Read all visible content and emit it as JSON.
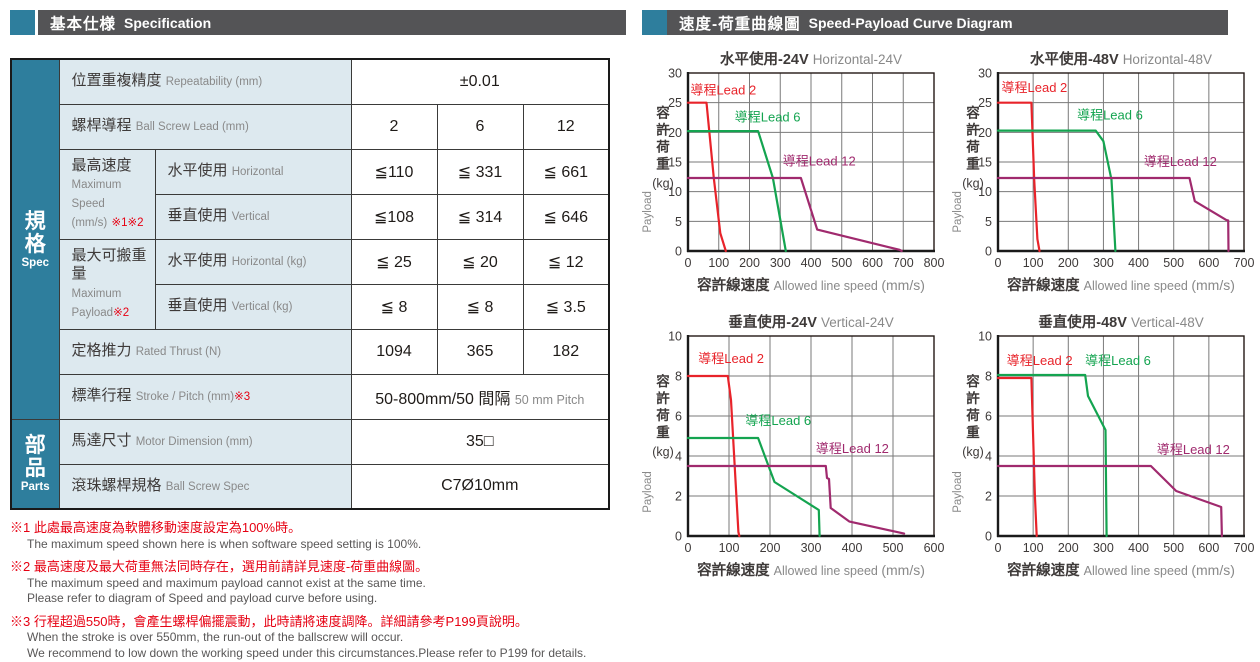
{
  "left_panel": {
    "header": {
      "zh": "基本仕様",
      "en": "Specification"
    },
    "sidebar": {
      "spec": {
        "zh": "規格",
        "en": "Spec"
      },
      "parts": {
        "zh": "部品",
        "en": "Parts"
      }
    },
    "rows": {
      "repeatability": {
        "zh": "位置重複精度",
        "en": "Repeatability (mm)",
        "value": "±0.01"
      },
      "lead": {
        "zh": "螺桿導程",
        "en": "Ball Screw Lead (mm)",
        "values": [
          "2",
          "6",
          "12"
        ]
      },
      "max_speed": {
        "zh": "最高速度",
        "en1": "Maximum Speed",
        "en2": "(mm/s)",
        "note": "※1※2",
        "horizontal": {
          "zh": "水平使用",
          "en": "Horizontal",
          "values": [
            "≦110",
            "≦ 331",
            "≦ 661"
          ]
        },
        "vertical": {
          "zh": "垂直使用",
          "en": "Vertical",
          "values": [
            "≦108",
            "≦ 314",
            "≦ 646"
          ]
        }
      },
      "max_payload": {
        "zh": "最大可搬重量",
        "en": "Maximum Payload",
        "note": "※2",
        "horizontal": {
          "zh": "水平使用",
          "en": "Horizontal (kg)",
          "values": [
            "≦ 25",
            "≦ 20",
            "≦ 12"
          ]
        },
        "vertical": {
          "zh": "垂直使用",
          "en": "Vertical (kg)",
          "values": [
            "≦ 8",
            "≦ 8",
            "≦ 3.5"
          ]
        }
      },
      "rated_thrust": {
        "zh": "定格推力",
        "en": "Rated Thrust (N)",
        "values": [
          "1094",
          "365",
          "182"
        ]
      },
      "stroke": {
        "zh": "標準行程",
        "en": "Stroke / Pitch (mm)",
        "note": "※3",
        "value_main": "50-800mm/50 間隔",
        "value_sub": "50 mm Pitch"
      },
      "motor": {
        "zh": "馬達尺寸",
        "en": "Motor Dimension (mm)",
        "value": "35□"
      },
      "ballscrew": {
        "zh": "滾珠螺桿規格",
        "en": "Ball Screw Spec",
        "value": "C7Ø10mm"
      }
    },
    "footnotes": [
      {
        "zh": "※1 此處最高速度為軟體移動速度設定為100%時。",
        "en": [
          "The maximum speed shown here is when software speed setting is 100%."
        ]
      },
      {
        "zh": "※2 最高速度及最大荷重無法同時存在，選用前請詳見速度-荷重曲線圖。",
        "en": [
          "The maximum speed and maximum payload cannot exist at the same time.",
          "Please refer to diagram of Speed and payload curve before using."
        ]
      },
      {
        "zh": "※3 行程超過550時，會產生螺桿偏擺震動，此時請將速度調降。詳細請參考P199頁說明。",
        "en": [
          "When the stroke is over 550mm, the run-out of the ballscrew will occur.",
          "We recommend to low down the working speed under this circumstances.Please refer to P199 for details."
        ]
      }
    ]
  },
  "right_panel": {
    "header": {
      "zh": "速度-荷重曲線圖",
      "en": "Speed-Payload Curve Diagram"
    }
  },
  "colors": {
    "red": "#e8232a",
    "green": "#14a450",
    "purple": "#a02a6e",
    "teal": "#2e7e9d",
    "header_gray": "#545456",
    "grid": "#7a7a7a",
    "axis_text": "#3e3a39",
    "muted_text": "#898989"
  },
  "chart_data": [
    {
      "type": "line",
      "title_zh": "水平使用-24V",
      "title_en": "Horizontal-24V",
      "xlabel_zh": "容許線速度",
      "xlabel_en": "Allowed line speed",
      "xlabel_unit": "(mm/s)",
      "ylabel_zh": "容許荷重",
      "ylabel_unit": "(kg)",
      "ylabel_en": "Payload",
      "xlim": [
        0,
        800
      ],
      "ylim": [
        0,
        30
      ],
      "xtick_step": 100,
      "ytick_step": 5,
      "grid": true,
      "legend_position": "inline",
      "series": [
        {
          "key": "lead2",
          "name": "導程Lead 2",
          "color": "red",
          "points": [
            [
              0,
              25
            ],
            [
              60,
              25
            ],
            [
              84,
              12.3
            ],
            [
              105,
              3
            ],
            [
              123,
              0
            ]
          ],
          "label_pos": [
            8,
            26.4
          ]
        },
        {
          "key": "lead6",
          "name": "導程Lead 6",
          "color": "green",
          "points": [
            [
              0,
              20.2
            ],
            [
              228,
              20.2
            ],
            [
              276,
              12.3
            ],
            [
              318,
              0
            ]
          ],
          "label_pos": [
            152,
            21.8
          ]
        },
        {
          "key": "lead12",
          "name": "導程Lead 12",
          "color": "purple",
          "points": [
            [
              0,
              12.3
            ],
            [
              367,
              12.3
            ],
            [
              420,
              3.6
            ],
            [
              688,
              0.2
            ],
            [
              695,
              0
            ]
          ],
          "label_pos": [
            308,
            14.4
          ]
        }
      ]
    },
    {
      "type": "line",
      "title_zh": "水平使用-48V",
      "title_en": "Horizontal-48V",
      "xlabel_zh": "容許線速度",
      "xlabel_en": "Allowed line speed",
      "xlabel_unit": "(mm/s)",
      "ylabel_zh": "容許荷重",
      "ylabel_unit": "(kg)",
      "ylabel_en": "Payload",
      "xlim": [
        0,
        700
      ],
      "ylim": [
        0,
        30
      ],
      "xtick_step": 100,
      "ytick_step": 5,
      "grid": true,
      "legend_position": "inline",
      "series": [
        {
          "key": "lead2",
          "name": "導程Lead 2",
          "color": "red",
          "points": [
            [
              0,
              25
            ],
            [
              95,
              25
            ],
            [
              103,
              12
            ],
            [
              112,
              2
            ],
            [
              118,
              0
            ]
          ],
          "label_pos": [
            10,
            26.8
          ]
        },
        {
          "key": "lead6",
          "name": "導程Lead 6",
          "color": "green",
          "points": [
            [
              0,
              20.3
            ],
            [
              278,
              20.3
            ],
            [
              300,
              18.5
            ],
            [
              323,
              12
            ],
            [
              334,
              0
            ]
          ],
          "label_pos": [
            225,
            22.2
          ]
        },
        {
          "key": "lead12",
          "name": "導程Lead 12",
          "color": "purple",
          "points": [
            [
              0,
              12.3
            ],
            [
              545,
              12.3
            ],
            [
              560,
              8.4
            ],
            [
              650,
              5.2
            ],
            [
              655,
              5.15
            ],
            [
              656,
              0
            ]
          ],
          "label_pos": [
            415,
            14.3
          ]
        }
      ]
    },
    {
      "type": "line",
      "title_zh": "垂直使用-24V",
      "title_en": "Vertical-24V",
      "xlabel_zh": "容許線速度",
      "xlabel_en": "Allowed line speed",
      "xlabel_unit": "(mm/s)",
      "ylabel_zh": "容許荷重",
      "ylabel_unit": "(kg)",
      "ylabel_en": "Payload",
      "xlim": [
        0,
        600
      ],
      "ylim": [
        0,
        10
      ],
      "xtick_step": 100,
      "ytick_step": 2,
      "grid": true,
      "legend_position": "inline",
      "series": [
        {
          "key": "lead2",
          "name": "導程Lead 2",
          "color": "red",
          "points": [
            [
              0,
              8
            ],
            [
              97,
              8
            ],
            [
              105,
              6.8
            ],
            [
              123,
              0.2
            ],
            [
              125,
              0
            ]
          ],
          "label_pos": [
            25,
            8.65
          ]
        },
        {
          "key": "lead6",
          "name": "導程Lead 6",
          "color": "green",
          "points": [
            [
              0,
              4.9
            ],
            [
              171,
              4.9
            ],
            [
              211,
              2.7
            ],
            [
              319,
              1.3
            ],
            [
              321,
              0
            ]
          ],
          "label_pos": [
            140,
            5.55
          ]
        },
        {
          "key": "lead12",
          "name": "導程Lead 12",
          "color": "purple",
          "points": [
            [
              0,
              3.5
            ],
            [
              336,
              3.5
            ],
            [
              339,
              2.9
            ],
            [
              344,
              2.85
            ],
            [
              348,
              1.4
            ],
            [
              394,
              0.72
            ],
            [
              527,
              0.12
            ]
          ],
          "label_pos": [
            312,
            4.15
          ]
        }
      ]
    },
    {
      "type": "line",
      "title_zh": "垂直使用-48V",
      "title_en": "Vertical-48V",
      "xlabel_zh": "容許線速度",
      "xlabel_en": "Allowed line speed",
      "xlabel_unit": "(mm/s)",
      "ylabel_zh": "容許荷重",
      "ylabel_unit": "(kg)",
      "ylabel_en": "Payload",
      "xlim": [
        0,
        700
      ],
      "ylim": [
        0,
        10
      ],
      "xtick_step": 100,
      "ytick_step": 2,
      "grid": true,
      "legend_position": "inline",
      "series": [
        {
          "key": "lead2",
          "name": "導程Lead 2",
          "color": "red",
          "points": [
            [
              0,
              7.9
            ],
            [
              95,
              7.9
            ],
            [
              105,
              2
            ],
            [
              110,
              0
            ]
          ],
          "label_pos": [
            25,
            8.55
          ]
        },
        {
          "key": "lead6",
          "name": "導程Lead 6",
          "color": "green",
          "points": [
            [
              0,
              8.05
            ],
            [
              248,
              8.05
            ],
            [
              256,
              7.0
            ],
            [
              306,
              5.3
            ],
            [
              309,
              0
            ]
          ],
          "label_pos": [
            248,
            8.55
          ]
        },
        {
          "key": "lead12",
          "name": "導程Lead 12",
          "color": "purple",
          "points": [
            [
              0,
              3.5
            ],
            [
              435,
              3.5
            ],
            [
              507,
              2.25
            ],
            [
              635,
              1.45
            ],
            [
              637,
              0
            ]
          ],
          "label_pos": [
            452,
            4.1
          ]
        }
      ]
    }
  ]
}
